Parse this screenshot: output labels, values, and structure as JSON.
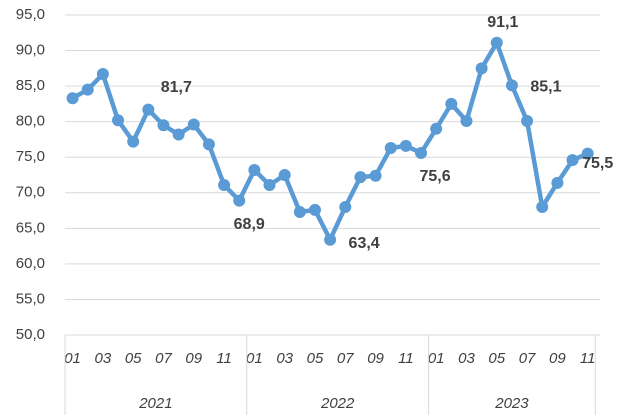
{
  "chart_data": {
    "type": "line",
    "categories": [
      "01",
      null,
      "03",
      null,
      "05",
      null,
      "07",
      null,
      "09",
      null,
      "11",
      null,
      "01",
      null,
      "03",
      null,
      "05",
      null,
      "07",
      null,
      "09",
      null,
      "11",
      null,
      "01",
      null,
      "03",
      null,
      "05",
      null,
      "07",
      null,
      "09",
      null,
      "11"
    ],
    "x_groups": [
      {
        "label": "2021",
        "count": 12
      },
      {
        "label": "2022",
        "count": 12
      },
      {
        "label": "2023",
        "count": 11
      }
    ],
    "series": [
      {
        "color": "#5b9bd5",
        "values": [
          83.3,
          84.5,
          86.7,
          80.2,
          77.2,
          81.7,
          79.5,
          78.2,
          79.6,
          76.8,
          71.1,
          68.9,
          73.2,
          71.1,
          72.5,
          67.3,
          67.6,
          63.4,
          68.0,
          72.2,
          72.4,
          76.3,
          76.6,
          75.6,
          79.0,
          82.5,
          80.1,
          87.5,
          91.1,
          85.1,
          80.1,
          68.0,
          71.4,
          74.6,
          75.5
        ],
        "value_labels": [
          null,
          null,
          null,
          null,
          null,
          "81,7",
          null,
          null,
          null,
          null,
          null,
          "68,9",
          null,
          null,
          null,
          null,
          null,
          "63,4",
          null,
          null,
          null,
          null,
          null,
          "75,6",
          null,
          null,
          null,
          null,
          "91,1",
          "85,1",
          null,
          null,
          null,
          null,
          "75,5"
        ]
      }
    ],
    "ylim": [
      50,
      95
    ],
    "yticks": [
      {
        "value": 50,
        "label": "50,0"
      },
      {
        "value": 55,
        "label": "55,0"
      },
      {
        "value": 60,
        "label": "60,0"
      },
      {
        "value": 65,
        "label": "65,0"
      },
      {
        "value": 70,
        "label": "70,0"
      },
      {
        "value": 75,
        "label": "75,0"
      },
      {
        "value": 80,
        "label": "80,0"
      },
      {
        "value": 85,
        "label": "85,0"
      },
      {
        "value": 90,
        "label": "90,0"
      },
      {
        "value": 95,
        "label": "95,0"
      }
    ],
    "grid": true
  }
}
